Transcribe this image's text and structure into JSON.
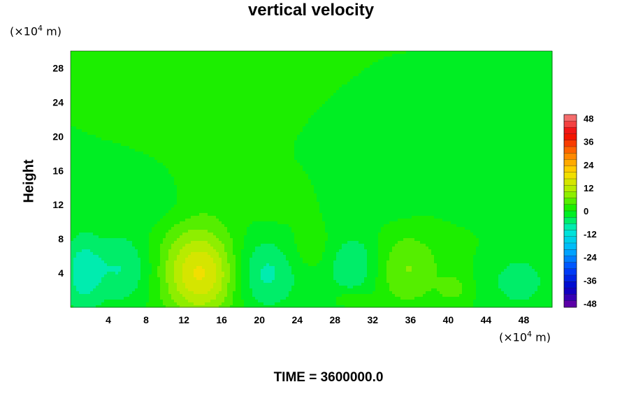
{
  "chart_data": {
    "type": "heatmap",
    "title": "vertical velocity",
    "ylabel": "Height",
    "xlabel": "",
    "x_unit": "(×10^4 m)",
    "y_unit": "(×10^4 m)",
    "x_unit_parts": {
      "pre": "(×10",
      "exp": "4",
      "post": " m)"
    },
    "y_unit_parts": {
      "pre": "(×10",
      "exp": "4",
      "post": " m)"
    },
    "xlim": [
      0,
      51
    ],
    "ylim": [
      0,
      30
    ],
    "xticks": [
      4,
      8,
      12,
      16,
      20,
      24,
      28,
      32,
      36,
      40,
      44,
      48
    ],
    "yticks": [
      4,
      8,
      12,
      16,
      20,
      24,
      28
    ],
    "colorbar": {
      "min": -50,
      "max": 50,
      "ticks": [
        48,
        36,
        24,
        12,
        0,
        -12,
        -24,
        -36,
        -48
      ],
      "levels": 30
    },
    "background_value": 0,
    "features": [
      {
        "x": 14,
        "y": 3.6,
        "value": 12,
        "sx": 2.6,
        "sy": 3.2
      },
      {
        "x": 13,
        "y": 5.5,
        "value": 6,
        "sx": 3.2,
        "sy": 4.5
      },
      {
        "x": 35.5,
        "y": 4.5,
        "value": 7,
        "sx": 2.6,
        "sy": 3.0
      },
      {
        "x": 40.5,
        "y": 2.2,
        "value": 5,
        "sx": 1.0,
        "sy": 1.0
      },
      {
        "x": 20.5,
        "y": 4.0,
        "value": -8,
        "sx": 2.6,
        "sy": 3.0
      },
      {
        "x": 5.5,
        "y": 4.5,
        "value": -7,
        "sx": 2.4,
        "sy": 3.0
      },
      {
        "x": 1.2,
        "y": 4.0,
        "value": -8,
        "sx": 1.4,
        "sy": 3.2
      },
      {
        "x": 30,
        "y": 5.0,
        "value": -7,
        "sx": 2.2,
        "sy": 2.6
      },
      {
        "x": 47.5,
        "y": 3.0,
        "value": -6,
        "sx": 2.0,
        "sy": 2.0
      },
      {
        "x": 29.8,
        "y": 1.0,
        "value": 4,
        "sx": 1.2,
        "sy": 0.6
      },
      {
        "x": 25.5,
        "y": 6.5,
        "value": 3,
        "sx": 2.0,
        "sy": 2.0
      },
      {
        "x": 8.5,
        "y": 12,
        "value": -3,
        "sx": 3.0,
        "sy": 2.0
      },
      {
        "x": 33,
        "y": 13,
        "value": -3,
        "sx": 3.0,
        "sy": 2.0
      },
      {
        "x": 42,
        "y": 14,
        "value": -2,
        "sx": 3.0,
        "sy": 2.0
      },
      {
        "x": 22,
        "y": 12,
        "value": 2,
        "sx": 2.0,
        "sy": 1.5
      },
      {
        "x": 15,
        "y": 14,
        "value": 2,
        "sx": 2.0,
        "sy": 1.5
      },
      {
        "x": 50,
        "y": 12,
        "value": -2,
        "sx": 1.5,
        "sy": 3.0
      }
    ]
  },
  "footer": {
    "text": "TIME = 3600000.0"
  },
  "colors": {
    "palette_top": "#f08080",
    "palette_bottom": "#7000a0",
    "zero": "#00ee00"
  }
}
